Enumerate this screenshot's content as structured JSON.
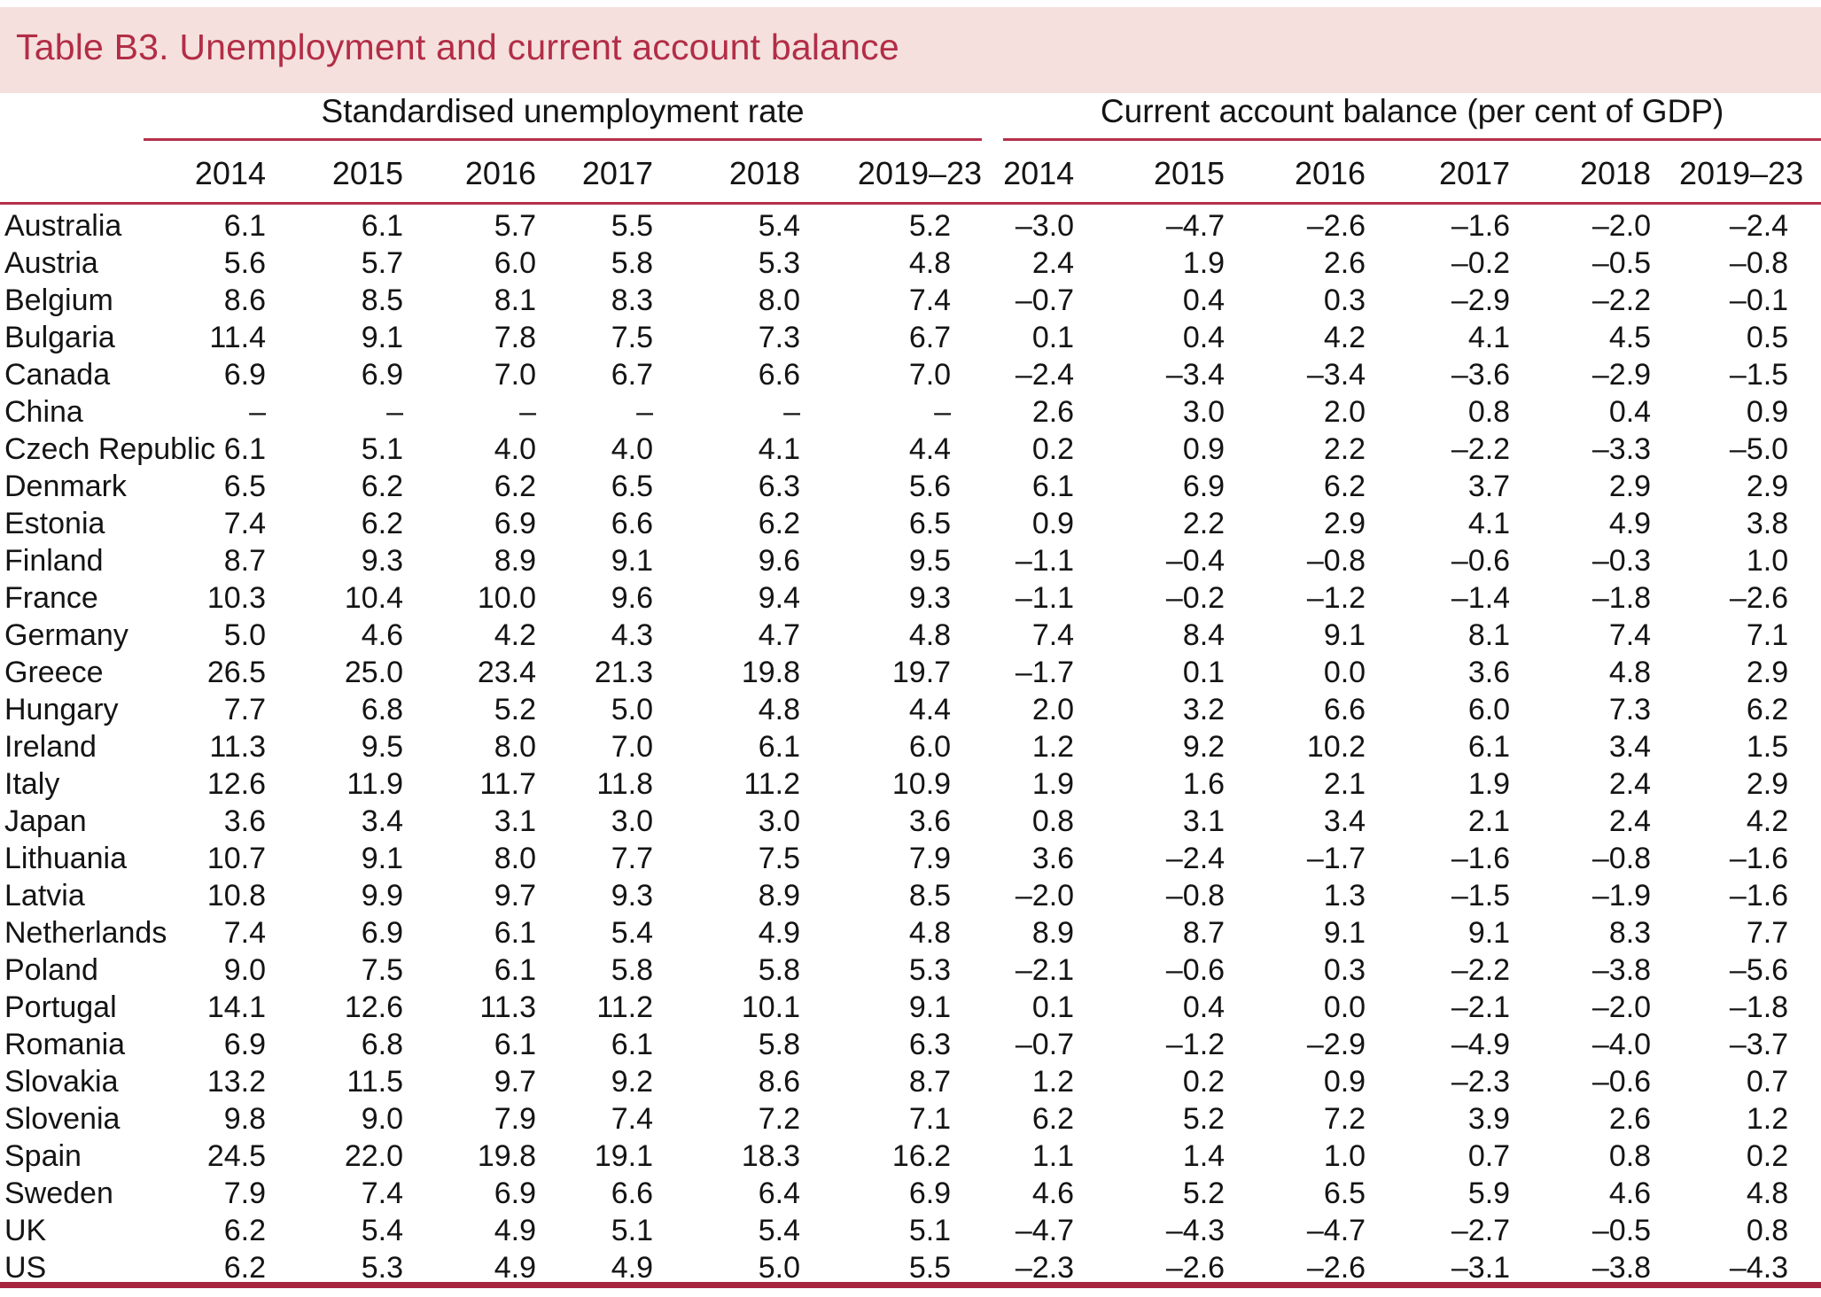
{
  "title": "Table B3. Unemployment and current account balance",
  "colors": {
    "band_bg": "#f5e0dd",
    "accent": "#b22d46",
    "rule": "#b5304c",
    "rule_heavy": "#a7263f",
    "text": "#141414"
  },
  "groups": [
    {
      "label": "Standardised unemployment rate",
      "years": [
        "2014",
        "2015",
        "2016",
        "2017",
        "2018",
        "2019–23"
      ]
    },
    {
      "label": "Current account balance (per cent of GDP)",
      "years": [
        "2014",
        "2015",
        "2016",
        "2017",
        "2018",
        "2019–23"
      ]
    }
  ],
  "rows": [
    {
      "country": "Australia",
      "unemployment": [
        "6.1",
        "6.1",
        "5.7",
        "5.5",
        "5.4",
        "5.2"
      ],
      "current_account": [
        "–3.0",
        "–4.7",
        "–2.6",
        "–1.6",
        "–2.0",
        "–2.4"
      ]
    },
    {
      "country": "Austria",
      "unemployment": [
        "5.6",
        "5.7",
        "6.0",
        "5.8",
        "5.3",
        "4.8"
      ],
      "current_account": [
        "2.4",
        "1.9",
        "2.6",
        "–0.2",
        "–0.5",
        "–0.8"
      ]
    },
    {
      "country": "Belgium",
      "unemployment": [
        "8.6",
        "8.5",
        "8.1",
        "8.3",
        "8.0",
        "7.4"
      ],
      "current_account": [
        "–0.7",
        "0.4",
        "0.3",
        "–2.9",
        "–2.2",
        "–0.1"
      ]
    },
    {
      "country": "Bulgaria",
      "unemployment": [
        "11.4",
        "9.1",
        "7.8",
        "7.5",
        "7.3",
        "6.7"
      ],
      "current_account": [
        "0.1",
        "0.4",
        "4.2",
        "4.1",
        "4.5",
        "0.5"
      ]
    },
    {
      "country": "Canada",
      "unemployment": [
        "6.9",
        "6.9",
        "7.0",
        "6.7",
        "6.6",
        "7.0"
      ],
      "current_account": [
        "–2.4",
        "–3.4",
        "–3.4",
        "–3.6",
        "–2.9",
        "–1.5"
      ]
    },
    {
      "country": "China",
      "unemployment": [
        "–",
        "–",
        "–",
        "–",
        "–",
        "–"
      ],
      "current_account": [
        "2.6",
        "3.0",
        "2.0",
        "0.8",
        "0.4",
        "0.9"
      ]
    },
    {
      "country": "Czech Republic",
      "unemployment": [
        "6.1",
        "5.1",
        "4.0",
        "4.0",
        "4.1",
        "4.4"
      ],
      "current_account": [
        "0.2",
        "0.9",
        "2.2",
        "–2.2",
        "–3.3",
        "–5.0"
      ]
    },
    {
      "country": "Denmark",
      "unemployment": [
        "6.5",
        "6.2",
        "6.2",
        "6.5",
        "6.3",
        "5.6"
      ],
      "current_account": [
        "6.1",
        "6.9",
        "6.2",
        "3.7",
        "2.9",
        "2.9"
      ]
    },
    {
      "country": "Estonia",
      "unemployment": [
        "7.4",
        "6.2",
        "6.9",
        "6.6",
        "6.2",
        "6.5"
      ],
      "current_account": [
        "0.9",
        "2.2",
        "2.9",
        "4.1",
        "4.9",
        "3.8"
      ]
    },
    {
      "country": "Finland",
      "unemployment": [
        "8.7",
        "9.3",
        "8.9",
        "9.1",
        "9.6",
        "9.5"
      ],
      "current_account": [
        "–1.1",
        "–0.4",
        "–0.8",
        "–0.6",
        "–0.3",
        "1.0"
      ]
    },
    {
      "country": "France",
      "unemployment": [
        "10.3",
        "10.4",
        "10.0",
        "9.6",
        "9.4",
        "9.3"
      ],
      "current_account": [
        "–1.1",
        "–0.2",
        "–1.2",
        "–1.4",
        "–1.8",
        "–2.6"
      ]
    },
    {
      "country": "Germany",
      "unemployment": [
        "5.0",
        "4.6",
        "4.2",
        "4.3",
        "4.7",
        "4.8"
      ],
      "current_account": [
        "7.4",
        "8.4",
        "9.1",
        "8.1",
        "7.4",
        "7.1"
      ]
    },
    {
      "country": "Greece",
      "unemployment": [
        "26.5",
        "25.0",
        "23.4",
        "21.3",
        "19.8",
        "19.7"
      ],
      "current_account": [
        "–1.7",
        "0.1",
        "0.0",
        "3.6",
        "4.8",
        "2.9"
      ]
    },
    {
      "country": "Hungary",
      "unemployment": [
        "7.7",
        "6.8",
        "5.2",
        "5.0",
        "4.8",
        "4.4"
      ],
      "current_account": [
        "2.0",
        "3.2",
        "6.6",
        "6.0",
        "7.3",
        "6.2"
      ]
    },
    {
      "country": "Ireland",
      "unemployment": [
        "11.3",
        "9.5",
        "8.0",
        "7.0",
        "6.1",
        "6.0"
      ],
      "current_account": [
        "1.2",
        "9.2",
        "10.2",
        "6.1",
        "3.4",
        "1.5"
      ]
    },
    {
      "country": "Italy",
      "unemployment": [
        "12.6",
        "11.9",
        "11.7",
        "11.8",
        "11.2",
        "10.9"
      ],
      "current_account": [
        "1.9",
        "1.6",
        "2.1",
        "1.9",
        "2.4",
        "2.9"
      ]
    },
    {
      "country": "Japan",
      "unemployment": [
        "3.6",
        "3.4",
        "3.1",
        "3.0",
        "3.0",
        "3.6"
      ],
      "current_account": [
        "0.8",
        "3.1",
        "3.4",
        "2.1",
        "2.4",
        "4.2"
      ]
    },
    {
      "country": "Lithuania",
      "unemployment": [
        "10.7",
        "9.1",
        "8.0",
        "7.7",
        "7.5",
        "7.9"
      ],
      "current_account": [
        "3.6",
        "–2.4",
        "–1.7",
        "–1.6",
        "–0.8",
        "–1.6"
      ]
    },
    {
      "country": "Latvia",
      "unemployment": [
        "10.8",
        "9.9",
        "9.7",
        "9.3",
        "8.9",
        "8.5"
      ],
      "current_account": [
        "–2.0",
        "–0.8",
        "1.3",
        "–1.5",
        "–1.9",
        "–1.6"
      ]
    },
    {
      "country": "Netherlands",
      "unemployment": [
        "7.4",
        "6.9",
        "6.1",
        "5.4",
        "4.9",
        "4.8"
      ],
      "current_account": [
        "8.9",
        "8.7",
        "9.1",
        "9.1",
        "8.3",
        "7.7"
      ]
    },
    {
      "country": "Poland",
      "unemployment": [
        "9.0",
        "7.5",
        "6.1",
        "5.8",
        "5.8",
        "5.3"
      ],
      "current_account": [
        "–2.1",
        "–0.6",
        "0.3",
        "–2.2",
        "–3.8",
        "–5.6"
      ]
    },
    {
      "country": "Portugal",
      "unemployment": [
        "14.1",
        "12.6",
        "11.3",
        "11.2",
        "10.1",
        "9.1"
      ],
      "current_account": [
        "0.1",
        "0.4",
        "0.0",
        "–2.1",
        "–2.0",
        "–1.8"
      ]
    },
    {
      "country": "Romania",
      "unemployment": [
        "6.9",
        "6.8",
        "6.1",
        "6.1",
        "5.8",
        "6.3"
      ],
      "current_account": [
        "–0.7",
        "–1.2",
        "–2.9",
        "–4.9",
        "–4.0",
        "–3.7"
      ]
    },
    {
      "country": "Slovakia",
      "unemployment": [
        "13.2",
        "11.5",
        "9.7",
        "9.2",
        "8.6",
        "8.7"
      ],
      "current_account": [
        "1.2",
        "0.2",
        "0.9",
        "–2.3",
        "–0.6",
        "0.7"
      ]
    },
    {
      "country": "Slovenia",
      "unemployment": [
        "9.8",
        "9.0",
        "7.9",
        "7.4",
        "7.2",
        "7.1"
      ],
      "current_account": [
        "6.2",
        "5.2",
        "7.2",
        "3.9",
        "2.6",
        "1.2"
      ]
    },
    {
      "country": "Spain",
      "unemployment": [
        "24.5",
        "22.0",
        "19.8",
        "19.1",
        "18.3",
        "16.2"
      ],
      "current_account": [
        "1.1",
        "1.4",
        "1.0",
        "0.7",
        "0.8",
        "0.2"
      ]
    },
    {
      "country": "Sweden",
      "unemployment": [
        "7.9",
        "7.4",
        "6.9",
        "6.6",
        "6.4",
        "6.9"
      ],
      "current_account": [
        "4.6",
        "5.2",
        "6.5",
        "5.9",
        "4.6",
        "4.8"
      ]
    },
    {
      "country": "UK",
      "unemployment": [
        "6.2",
        "5.4",
        "4.9",
        "5.1",
        "5.4",
        "5.1"
      ],
      "current_account": [
        "–4.7",
        "–4.3",
        "–4.7",
        "–2.7",
        "–0.5",
        "0.8"
      ]
    },
    {
      "country": "US",
      "unemployment": [
        "6.2",
        "5.3",
        "4.9",
        "4.9",
        "5.0",
        "5.5"
      ],
      "current_account": [
        "–2.3",
        "–2.6",
        "–2.6",
        "–3.1",
        "–3.8",
        "–4.3"
      ]
    }
  ]
}
